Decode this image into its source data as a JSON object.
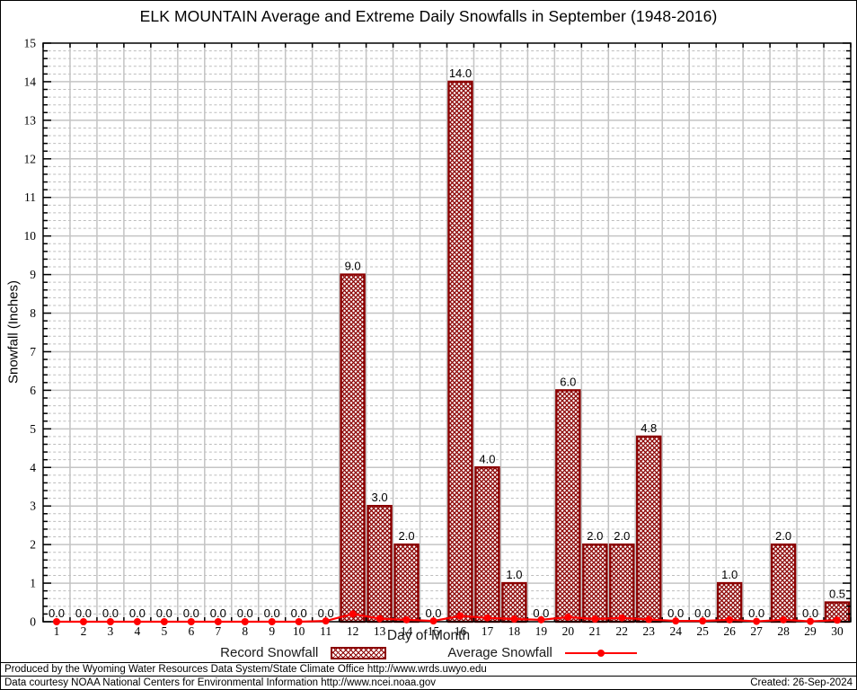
{
  "chart_data": {
    "type": "bar",
    "title": "ELK MOUNTAIN Average and Extreme Daily Snowfalls in September (1948-2016)",
    "xlabel": "Day of Month",
    "ylabel": "Snowfall (Inches)",
    "x": [
      1,
      2,
      3,
      4,
      5,
      6,
      7,
      8,
      9,
      10,
      11,
      12,
      13,
      14,
      15,
      16,
      17,
      18,
      19,
      20,
      21,
      22,
      23,
      24,
      25,
      26,
      27,
      28,
      29,
      30
    ],
    "ylim": [
      0,
      15
    ],
    "ytick_step": 1,
    "minor_ytick_step": 0.2,
    "grid": {
      "major_horizontal": true,
      "minor_horizontal_dashed": true,
      "major_vertical": true
    },
    "legend_position": "bottom-center",
    "series": [
      {
        "name": "Record Snowfall",
        "type": "bar",
        "style": "crosshatch",
        "color": "#8b0000",
        "value_label_decimals": 1,
        "values": [
          0.0,
          0.0,
          0.0,
          0.0,
          0.0,
          0.0,
          0.0,
          0.0,
          0.0,
          0.0,
          0.0,
          9.0,
          3.0,
          2.0,
          0.0,
          14.0,
          4.0,
          1.0,
          0.0,
          6.0,
          2.0,
          2.0,
          4.8,
          0.0,
          0.0,
          1.0,
          0.0,
          2.0,
          0.0,
          0.5
        ]
      },
      {
        "name": "Average Snowfall",
        "type": "line",
        "color": "#ff0000",
        "marker": "dot",
        "values": [
          0.0,
          0.0,
          0.0,
          0.0,
          0.0,
          0.0,
          0.0,
          0.0,
          0.0,
          0.0,
          0.02,
          0.2,
          0.08,
          0.05,
          0.02,
          0.15,
          0.1,
          0.07,
          0.05,
          0.12,
          0.07,
          0.1,
          0.06,
          0.02,
          0.02,
          0.05,
          0.01,
          0.05,
          0.01,
          0.04
        ]
      }
    ],
    "colors": {
      "bar_outline": "#8b0000",
      "average_line": "#ff0000",
      "grid_major": "#c4c4c4",
      "grid_minor": "#bdbdbd",
      "axis_frame": "#000000"
    }
  },
  "footer": {
    "line1": "Produced by the Wyoming Water Resources Data System/State Climate Office http://www.wrds.uwyo.edu",
    "line2": "Data courtesy NOAA National Centers for Environmental Information http://www.ncei.noaa.gov",
    "created": "Created: 26-Sep-2024"
  }
}
